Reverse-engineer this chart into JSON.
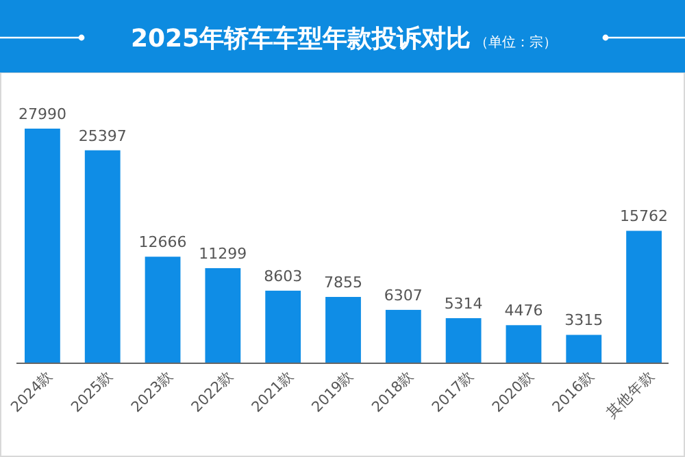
{
  "chart_data": {
    "type": "bar",
    "title": "2025年轿车车型年款投诉对比",
    "subtitle": "（单位：宗）",
    "categories": [
      "2024款",
      "2025款",
      "2023款",
      "2022款",
      "2021款",
      "2019款",
      "2018款",
      "2017款",
      "2020款",
      "2016款",
      "其他年款"
    ],
    "values": [
      27990,
      25397,
      12666,
      11299,
      8603,
      7855,
      6307,
      5314,
      4476,
      3315,
      15762
    ],
    "color": "#0f8de6",
    "data_labels": true
  }
}
